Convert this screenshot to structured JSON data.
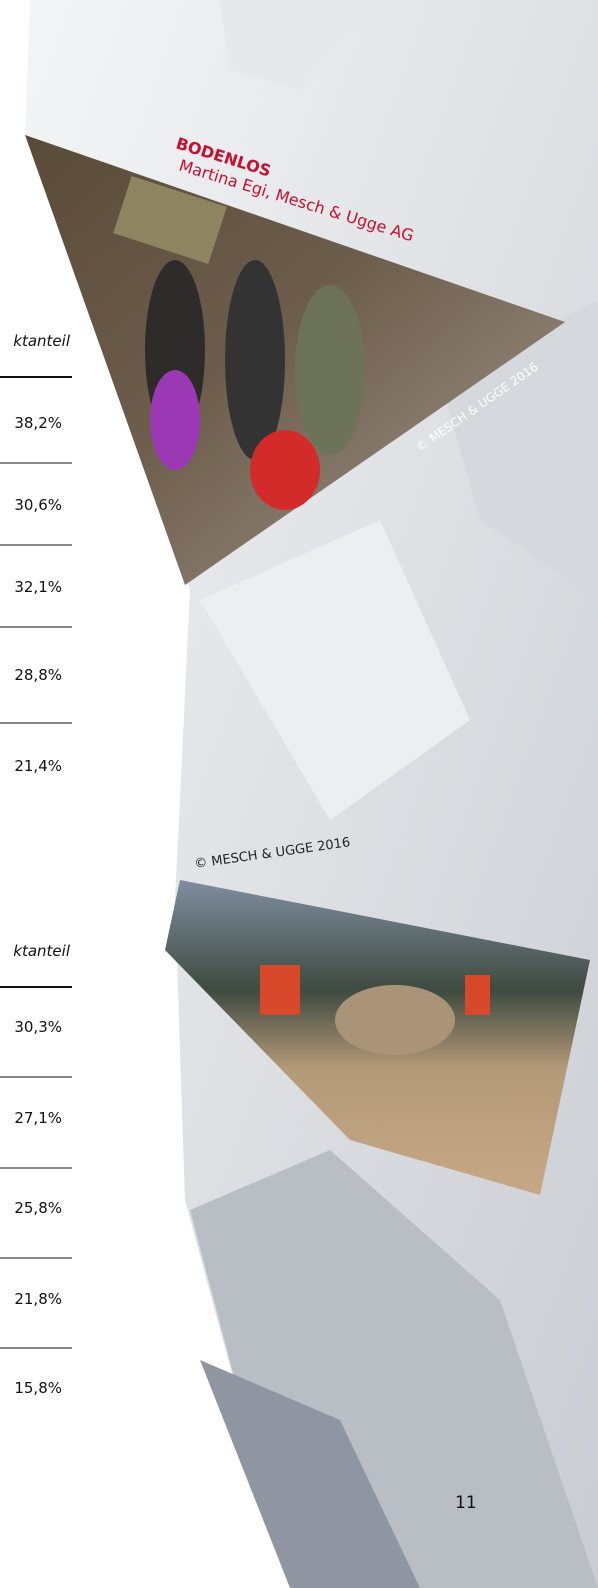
{
  "tables": [
    {
      "header": "ktanteil",
      "rows": [
        "38,2%",
        "30,6%",
        "32,1%",
        "28,8%",
        "21,4%"
      ]
    },
    {
      "header": "ktanteil",
      "rows": [
        "30,3%",
        "27,1%",
        "25,8%",
        "21,8%",
        "15,8%"
      ]
    }
  ],
  "photos": [
    {
      "title": "BODENLOS",
      "caption": "Martina Egi, Mesch & Ugge AG",
      "credit": "© MESCH & UGGE 2016"
    },
    {
      "credit": "© MESCH & UGGE 2016"
    }
  ],
  "page_number": "11"
}
